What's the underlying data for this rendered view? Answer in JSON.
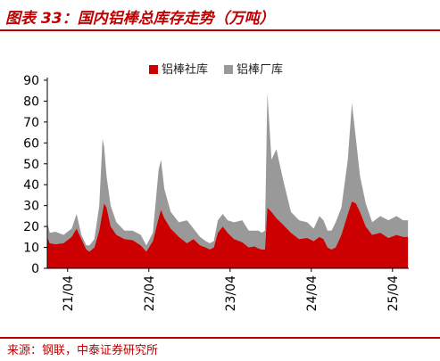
{
  "header": {
    "title": "图表 33：国内铝棒总库存走势（万吨）"
  },
  "footer": {
    "source": "来源：钢联，中泰证券研究所"
  },
  "chart_data": {
    "type": "area",
    "title": "图表 33：国内铝棒总库存走势（万吨）",
    "xlabel": "",
    "ylabel": "",
    "ylim": [
      0,
      90
    ],
    "yticks": [
      0,
      10,
      20,
      30,
      40,
      50,
      60,
      70,
      80,
      90
    ],
    "xlim": [
      2021.0,
      2025.45
    ],
    "xticks": [
      {
        "label": "21/04",
        "x": 2021.25
      },
      {
        "label": "22/04",
        "x": 2022.25
      },
      {
        "label": "23/04",
        "x": 2023.25
      },
      {
        "label": "24/04",
        "x": 2024.25
      },
      {
        "label": "25/04",
        "x": 2025.25
      }
    ],
    "stacked": true,
    "grid": false,
    "legend_position": "top-center",
    "series": [
      {
        "name": "铝棒社库",
        "color": "#cc0000",
        "points": [
          [
            2021.0,
            15
          ],
          [
            2021.03,
            12
          ],
          [
            2021.1,
            11.5
          ],
          [
            2021.2,
            12
          ],
          [
            2021.3,
            15
          ],
          [
            2021.36,
            19
          ],
          [
            2021.42,
            14
          ],
          [
            2021.48,
            9
          ],
          [
            2021.52,
            8
          ],
          [
            2021.58,
            10
          ],
          [
            2021.64,
            18
          ],
          [
            2021.68,
            27
          ],
          [
            2021.7,
            31
          ],
          [
            2021.73,
            29
          ],
          [
            2021.78,
            20
          ],
          [
            2021.85,
            16
          ],
          [
            2021.95,
            14
          ],
          [
            2022.05,
            13.5
          ],
          [
            2022.15,
            11
          ],
          [
            2022.22,
            8
          ],
          [
            2022.3,
            13
          ],
          [
            2022.37,
            24
          ],
          [
            2022.4,
            28
          ],
          [
            2022.44,
            24
          ],
          [
            2022.52,
            19
          ],
          [
            2022.62,
            15
          ],
          [
            2022.72,
            12
          ],
          [
            2022.8,
            14
          ],
          [
            2022.88,
            11
          ],
          [
            2022.95,
            10
          ],
          [
            2023.0,
            9
          ],
          [
            2023.05,
            10
          ],
          [
            2023.1,
            17
          ],
          [
            2023.16,
            20
          ],
          [
            2023.22,
            17
          ],
          [
            2023.3,
            14
          ],
          [
            2023.4,
            12.5
          ],
          [
            2023.48,
            10
          ],
          [
            2023.55,
            10.5
          ],
          [
            2023.6,
            9.5
          ],
          [
            2023.64,
            9
          ],
          [
            2023.68,
            9
          ],
          [
            2023.71,
            29
          ],
          [
            2023.76,
            27
          ],
          [
            2023.82,
            24
          ],
          [
            2023.9,
            21
          ],
          [
            2024.0,
            17
          ],
          [
            2024.1,
            14
          ],
          [
            2024.2,
            14.5
          ],
          [
            2024.28,
            13
          ],
          [
            2024.35,
            15
          ],
          [
            2024.4,
            14
          ],
          [
            2024.45,
            10
          ],
          [
            2024.5,
            9
          ],
          [
            2024.55,
            10
          ],
          [
            2024.62,
            16
          ],
          [
            2024.7,
            26
          ],
          [
            2024.75,
            32
          ],
          [
            2024.8,
            31
          ],
          [
            2024.85,
            27
          ],
          [
            2024.92,
            20
          ],
          [
            2025.0,
            16
          ],
          [
            2025.1,
            17
          ],
          [
            2025.2,
            14.5
          ],
          [
            2025.3,
            16
          ],
          [
            2025.38,
            15
          ],
          [
            2025.44,
            15
          ]
        ]
      },
      {
        "name": "铝棒厂库",
        "color": "#999999",
        "points": [
          [
            2021.0,
            7
          ],
          [
            2021.03,
            5
          ],
          [
            2021.1,
            6
          ],
          [
            2021.2,
            4
          ],
          [
            2021.3,
            4
          ],
          [
            2021.36,
            7
          ],
          [
            2021.42,
            2
          ],
          [
            2021.48,
            2
          ],
          [
            2021.52,
            3
          ],
          [
            2021.58,
            4
          ],
          [
            2021.64,
            12
          ],
          [
            2021.68,
            35
          ],
          [
            2021.7,
            27
          ],
          [
            2021.73,
            15
          ],
          [
            2021.78,
            10
          ],
          [
            2021.85,
            6
          ],
          [
            2021.95,
            4
          ],
          [
            2022.05,
            4.5
          ],
          [
            2022.15,
            5
          ],
          [
            2022.22,
            3
          ],
          [
            2022.3,
            4
          ],
          [
            2022.37,
            23
          ],
          [
            2022.4,
            24
          ],
          [
            2022.44,
            14
          ],
          [
            2022.52,
            8
          ],
          [
            2022.62,
            7
          ],
          [
            2022.72,
            11
          ],
          [
            2022.8,
            5
          ],
          [
            2022.88,
            4
          ],
          [
            2022.95,
            3
          ],
          [
            2023.0,
            3
          ],
          [
            2023.05,
            3
          ],
          [
            2023.1,
            6
          ],
          [
            2023.16,
            6
          ],
          [
            2023.22,
            6
          ],
          [
            2023.3,
            8
          ],
          [
            2023.4,
            10.5
          ],
          [
            2023.48,
            8
          ],
          [
            2023.55,
            7.5
          ],
          [
            2023.6,
            8.5
          ],
          [
            2023.64,
            8
          ],
          [
            2023.68,
            9
          ],
          [
            2023.71,
            55
          ],
          [
            2023.76,
            25
          ],
          [
            2023.82,
            33
          ],
          [
            2023.9,
            22
          ],
          [
            2024.0,
            10
          ],
          [
            2024.1,
            9
          ],
          [
            2024.2,
            7.5
          ],
          [
            2024.28,
            6
          ],
          [
            2024.35,
            10
          ],
          [
            2024.4,
            9
          ],
          [
            2024.45,
            8
          ],
          [
            2024.5,
            9
          ],
          [
            2024.55,
            12
          ],
          [
            2024.62,
            13
          ],
          [
            2024.7,
            26
          ],
          [
            2024.75,
            47
          ],
          [
            2024.8,
            31
          ],
          [
            2024.85,
            17
          ],
          [
            2024.92,
            11
          ],
          [
            2025.0,
            6
          ],
          [
            2025.1,
            8
          ],
          [
            2025.2,
            8.5
          ],
          [
            2025.3,
            9
          ],
          [
            2025.38,
            8
          ],
          [
            2025.44,
            8
          ]
        ]
      }
    ]
  }
}
